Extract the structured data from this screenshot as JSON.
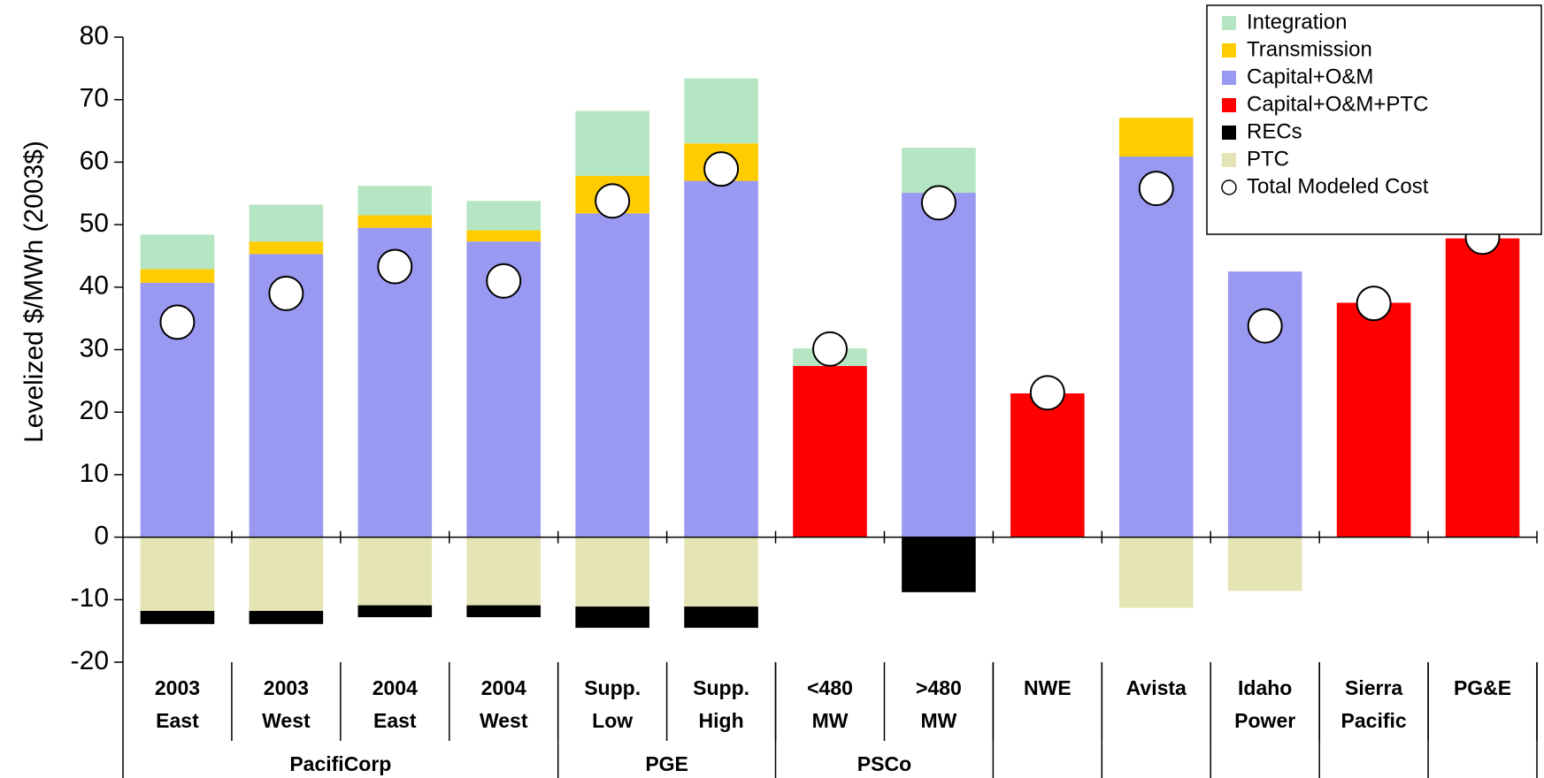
{
  "chart_data": {
    "type": "bar",
    "y_label": "Levelized $/MWh (2003$)",
    "categories": [
      [
        "2003",
        "East"
      ],
      [
        "2003",
        "West"
      ],
      [
        "2004",
        "East"
      ],
      [
        "2004",
        "West"
      ],
      [
        "Supp.",
        "Low"
      ],
      [
        "Supp.",
        "High"
      ],
      [
        "<480",
        "MW"
      ],
      [
        ">480",
        "MW"
      ],
      [
        "NWE"
      ],
      [
        "Avista"
      ],
      [
        "Idaho",
        "Power"
      ],
      [
        "Sierra",
        "Pacific"
      ],
      [
        "PG&E"
      ]
    ],
    "groups": [
      {
        "name": "PacifiCorp",
        "size": 4
      },
      {
        "name": "PGE",
        "size": 2
      },
      {
        "name": "PSCo",
        "size": 2
      },
      {
        "name": null,
        "size": 1
      },
      {
        "name": null,
        "size": 1
      },
      {
        "name": null,
        "size": 1
      },
      {
        "name": null,
        "size": 1
      },
      {
        "name": null,
        "size": 1
      }
    ],
    "series": [
      {
        "name": "Integration",
        "type": "bar",
        "color": "#b5e6c3",
        "values": [
          5.5,
          5.9,
          4.7,
          4.7,
          10.4,
          10.4,
          2.8,
          7.2,
          null,
          null,
          null,
          null,
          null
        ]
      },
      {
        "name": "Transmission",
        "type": "bar",
        "color": "#ffcc00",
        "values": [
          2.2,
          2.0,
          2.0,
          1.8,
          6.0,
          6.0,
          null,
          null,
          null,
          6.2,
          null,
          null,
          null
        ]
      },
      {
        "name": "Capital+O&M",
        "type": "bar",
        "color": "#9999f2",
        "values": [
          40.7,
          45.3,
          49.5,
          47.3,
          51.8,
          57.0,
          null,
          55.1,
          null,
          60.9,
          42.5,
          null,
          null
        ]
      },
      {
        "name": "Capital+O&M+PTC",
        "type": "bar",
        "color": "#ff0000",
        "values": [
          null,
          null,
          null,
          null,
          null,
          null,
          27.4,
          null,
          23.0,
          null,
          null,
          37.5,
          47.8
        ]
      },
      {
        "name": "RECs",
        "type": "bar",
        "color": "#000000",
        "values": [
          -2.1,
          -2.1,
          -1.9,
          -1.9,
          -3.4,
          -3.4,
          null,
          -8.8,
          null,
          null,
          null,
          null,
          null
        ]
      },
      {
        "name": "PTC",
        "type": "bar",
        "color": "#e4e4b4",
        "values": [
          -11.8,
          -11.8,
          -10.9,
          -10.9,
          -11.1,
          -11.1,
          null,
          null,
          null,
          -11.3,
          -8.6,
          null,
          null
        ]
      },
      {
        "name": "Total Modeled Cost",
        "type": "scatter",
        "color": "#ffffff",
        "values": [
          34.4,
          39.0,
          43.3,
          41.0,
          53.8,
          58.9,
          30.1,
          53.5,
          23.1,
          55.8,
          33.8,
          37.4,
          48.0
        ]
      }
    ],
    "ylim": [
      -20,
      80
    ],
    "yticks": [
      -20,
      -10,
      0,
      10,
      20,
      30,
      40,
      50,
      60,
      70,
      80
    ],
    "legend": "upper right",
    "grid": false
  }
}
